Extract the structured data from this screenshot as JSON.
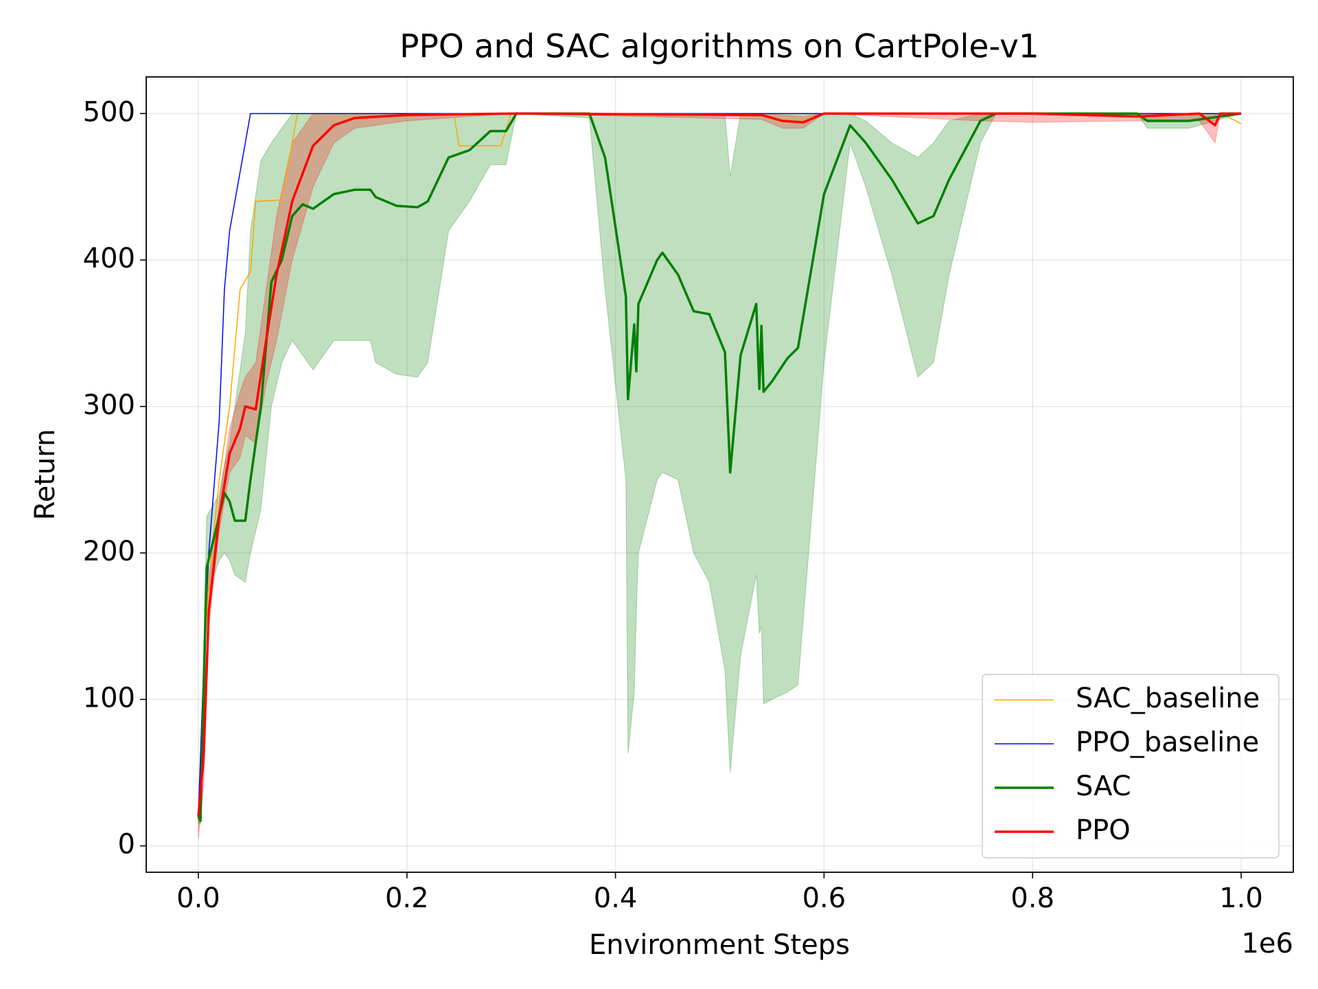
{
  "chart_data": {
    "type": "line",
    "title": "PPO and SAC algorithms on CartPole-v1",
    "xlabel": "Environment Steps",
    "ylabel": "Return",
    "x_offset_label": "1e6",
    "xlim": [
      -50000,
      1050000
    ],
    "ylim": [
      -18,
      525
    ],
    "xticks": [
      {
        "value": 0,
        "label": "0.0"
      },
      {
        "value": 200000,
        "label": "0.2"
      },
      {
        "value": 400000,
        "label": "0.4"
      },
      {
        "value": 600000,
        "label": "0.6"
      },
      {
        "value": 800000,
        "label": "0.8"
      },
      {
        "value": 1000000,
        "label": "1.0"
      }
    ],
    "yticks": [
      0,
      100,
      200,
      300,
      400,
      500
    ],
    "grid": true,
    "legend": "lower right",
    "series": [
      {
        "name": "SAC_baseline",
        "color": "#ffa500",
        "linewidth": 1.5,
        "x": [
          0,
          5000,
          10000,
          20000,
          30000,
          40000,
          50000,
          55000,
          80000,
          95000,
          245000,
          250000,
          290000,
          300000,
          980000,
          995000,
          1000000
        ],
        "values": [
          20,
          120,
          180,
          250,
          300,
          380,
          392,
          440,
          441,
          500,
          500,
          478,
          478,
          500,
          500,
          495,
          493
        ]
      },
      {
        "name": "PPO_baseline",
        "color": "#0000ff",
        "linewidth": 1.5,
        "x": [
          0,
          5000,
          10000,
          20000,
          25000,
          30000,
          40000,
          45000,
          50000,
          1000000
        ],
        "values": [
          20,
          120,
          200,
          290,
          380,
          420,
          460,
          480,
          500,
          500
        ]
      },
      {
        "name": "SAC",
        "color": "#008000",
        "linewidth": 3.5,
        "x": [
          0,
          2000,
          8000,
          20000,
          25000,
          30000,
          35000,
          45000,
          50000,
          60000,
          70000,
          80000,
          90000,
          100000,
          110000,
          130000,
          150000,
          165000,
          170000,
          190000,
          210000,
          220000,
          240000,
          260000,
          280000,
          295000,
          305000,
          375000,
          390000,
          410000,
          412000,
          418000,
          420000,
          422000,
          440000,
          445000,
          460000,
          475000,
          490000,
          505000,
          510000,
          520000,
          535000,
          538000,
          540000,
          542000,
          550000,
          565000,
          575000,
          600000,
          625000,
          640000,
          665000,
          690000,
          705000,
          720000,
          750000,
          765000,
          900000,
          910000,
          950000,
          1000000
        ],
        "values": [
          20,
          17,
          190,
          225,
          241,
          235,
          222,
          222,
          250,
          300,
          385,
          400,
          430,
          438,
          435,
          445,
          448,
          448,
          443,
          437,
          436,
          440,
          470,
          475,
          488,
          488,
          500,
          500,
          470,
          375,
          305,
          356,
          324,
          370,
          400,
          405,
          390,
          365,
          363,
          337,
          255,
          335,
          370,
          312,
          355,
          310,
          317,
          333,
          340,
          445,
          492,
          480,
          455,
          425,
          430,
          455,
          495,
          500,
          500,
          495,
          495,
          500
        ],
        "lower": [
          15,
          15,
          170,
          195,
          200,
          195,
          185,
          180,
          200,
          230,
          300,
          330,
          345,
          335,
          325,
          345,
          345,
          345,
          330,
          322,
          320,
          330,
          420,
          440,
          465,
          465,
          500,
          497,
          380,
          250,
          63,
          105,
          160,
          200,
          250,
          255,
          250,
          200,
          180,
          120,
          50,
          130,
          185,
          145,
          150,
          97,
          100,
          105,
          110,
          330,
          480,
          450,
          390,
          320,
          330,
          390,
          480,
          500,
          500,
          490,
          490,
          500
        ],
        "upper": [
          25,
          40,
          225,
          240,
          260,
          275,
          300,
          350,
          420,
          468,
          480,
          490,
          500,
          500,
          500,
          500,
          500,
          500,
          500,
          500,
          500,
          500,
          500,
          500,
          500,
          500,
          500,
          500,
          500,
          500,
          500,
          500,
          500,
          500,
          500,
          500,
          500,
          500,
          500,
          500,
          457,
          500,
          500,
          500,
          500,
          500,
          500,
          500,
          500,
          500,
          500,
          495,
          480,
          470,
          480,
          495,
          500,
          500,
          500,
          500,
          500,
          500
        ]
      },
      {
        "name": "PPO",
        "color": "#ff0000",
        "linewidth": 3.5,
        "x": [
          0,
          5000,
          10000,
          20000,
          30000,
          40000,
          45000,
          55000,
          65000,
          75000,
          90000,
          110000,
          130000,
          150000,
          200000,
          300000,
          540000,
          560000,
          580000,
          600000,
          750000,
          800000,
          900000,
          960000,
          975000,
          980000,
          1000000
        ],
        "values": [
          20,
          60,
          160,
          225,
          268,
          285,
          300,
          298,
          345,
          390,
          440,
          478,
          492,
          497,
          499,
          500,
          499,
          495,
          494,
          500,
          500,
          500,
          498,
          500,
          492,
          500,
          500
        ],
        "lower": [
          5,
          40,
          150,
          215,
          255,
          265,
          280,
          275,
          315,
          345,
          400,
          450,
          480,
          490,
          495,
          500,
          496,
          490,
          490,
          500,
          495,
          494,
          495,
          495,
          480,
          500,
          500
        ],
        "upper": [
          30,
          80,
          175,
          235,
          285,
          310,
          320,
          330,
          380,
          430,
          480,
          500,
          500,
          500,
          500,
          500,
          500,
          499,
          498,
          500,
          500,
          500,
          500,
          500,
          500,
          500,
          500
        ]
      }
    ]
  }
}
